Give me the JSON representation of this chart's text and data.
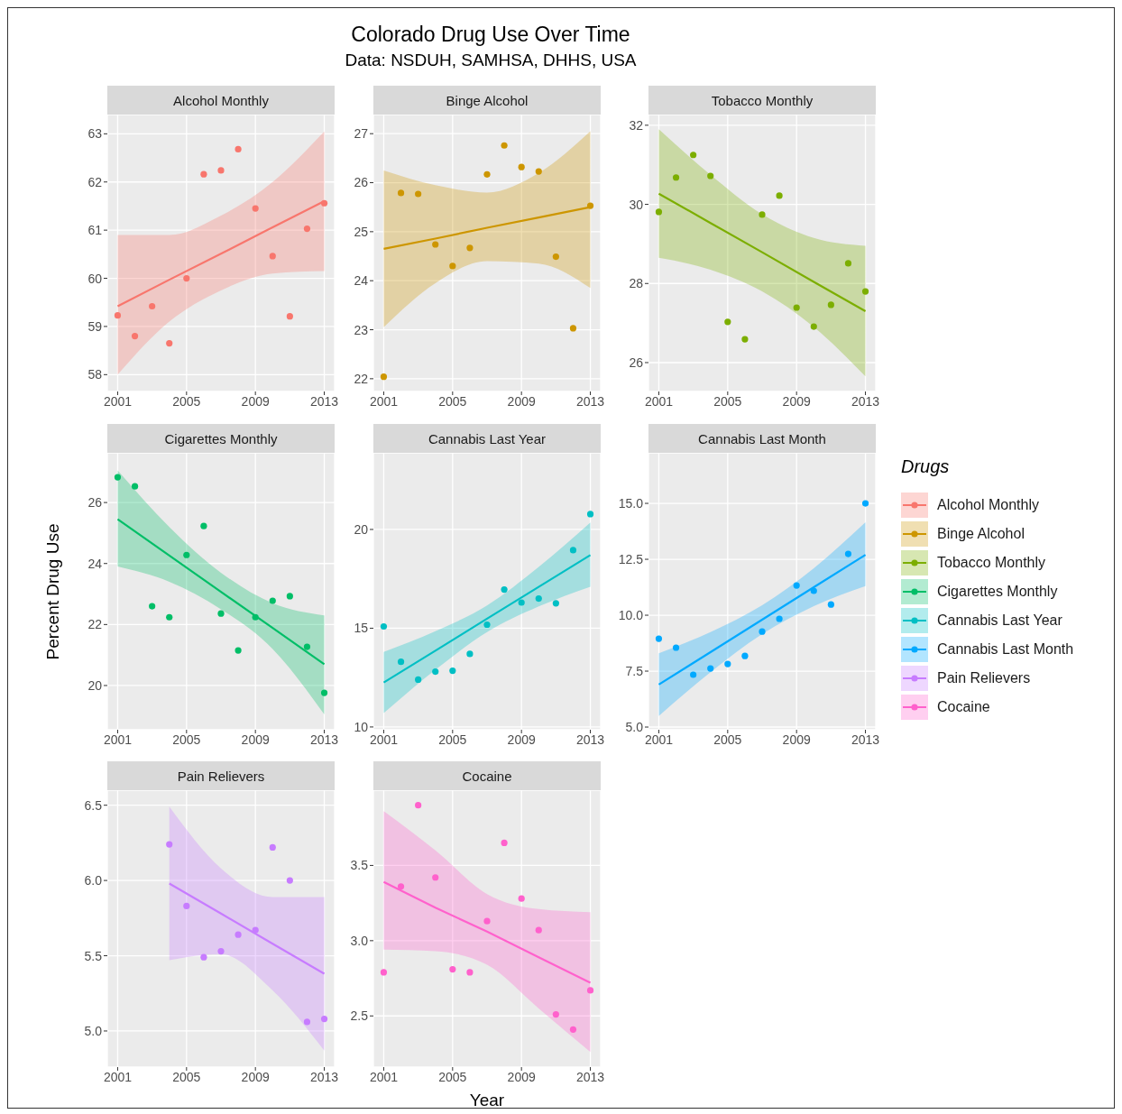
{
  "chart_data": [
    {
      "type": "other",
      "title": "Colorado Drug Use Over Time",
      "subtitle": "Data: NSDUH, SAMHSA, DHHS, USA"
    },
    {
      "type": "scatter",
      "title": "Alcohol Monthly",
      "legend": "right",
      "legend_title": "Drugs",
      "grid": true,
      "xlim": [
        2000.4,
        2013.6
      ],
      "xticks": [
        2001,
        2005,
        2009,
        2013
      ],
      "ylim": [
        57.65,
        63.4
      ],
      "yticks": [
        58,
        59,
        60,
        61,
        62,
        63
      ],
      "series": [
        {
          "name": "Alcohol Monthly",
          "type": "scatter",
          "marker": "circle",
          "color": "#f8766d",
          "x": [
            2001,
            2002,
            2003,
            2004,
            2005,
            2006,
            2007,
            2008,
            2009,
            2010,
            2011,
            2012,
            2013
          ],
          "values": [
            59.23,
            58.8,
            59.42,
            58.65,
            60.0,
            62.16,
            62.24,
            62.68,
            61.45,
            60.46,
            59.21,
            61.03,
            61.56
          ]
        },
        {
          "type": "line",
          "marker": "none",
          "color": "#f8766d",
          "x": [
            2001,
            2004,
            2007,
            2010,
            2013
          ],
          "values": [
            59.42,
            59.97,
            60.51,
            61.06,
            61.6
          ],
          "lower": [
            58.0,
            59.1,
            59.75,
            60.1,
            60.15
          ],
          "upper": [
            60.9,
            60.9,
            61.3,
            62.0,
            63.05
          ]
        }
      ]
    },
    {
      "type": "scatter",
      "title": "Binge Alcohol",
      "legend": "right",
      "grid": true,
      "xlim": [
        2000.4,
        2013.6
      ],
      "xticks": [
        2001,
        2005,
        2009,
        2013
      ],
      "ylim": [
        21.74,
        27.39
      ],
      "yticks": [
        22,
        23,
        24,
        25,
        26,
        27
      ],
      "series": [
        {
          "name": "Binge Alcohol",
          "type": "scatter",
          "marker": "circle",
          "color": "#cd9600",
          "x": [
            2001,
            2002,
            2003,
            2004,
            2005,
            2006,
            2007,
            2008,
            2009,
            2010,
            2011,
            2012,
            2013
          ],
          "values": [
            22.04,
            25.79,
            25.77,
            24.74,
            24.3,
            24.67,
            26.17,
            26.76,
            26.32,
            26.23,
            24.49,
            23.03,
            25.53
          ]
        },
        {
          "type": "line",
          "marker": "none",
          "color": "#cd9600",
          "x": [
            2001,
            2004,
            2007,
            2010,
            2013
          ],
          "values": [
            24.65,
            24.86,
            25.08,
            25.29,
            25.5
          ],
          "lower": [
            23.05,
            23.95,
            24.4,
            24.35,
            23.85
          ],
          "upper": [
            26.25,
            25.95,
            25.8,
            26.2,
            27.05
          ]
        }
      ]
    },
    {
      "type": "scatter",
      "title": "Tobacco Monthly",
      "legend": "right",
      "grid": true,
      "xlim": [
        2000.4,
        2013.6
      ],
      "xticks": [
        2001,
        2005,
        2009,
        2013
      ],
      "ylim": [
        25.27,
        32.27
      ],
      "yticks": [
        26,
        28,
        30,
        32
      ],
      "series": [
        {
          "name": "Tobacco Monthly",
          "type": "scatter",
          "marker": "circle",
          "color": "#7cae00",
          "x": [
            2001,
            2002,
            2003,
            2004,
            2005,
            2006,
            2007,
            2008,
            2009,
            2010,
            2011,
            2012,
            2013
          ],
          "values": [
            29.81,
            30.68,
            31.25,
            30.72,
            27.03,
            26.59,
            29.74,
            30.22,
            27.39,
            26.91,
            27.46,
            28.51,
            27.8
          ]
        },
        {
          "type": "line",
          "marker": "none",
          "color": "#7cae00",
          "x": [
            2001,
            2004,
            2007,
            2010,
            2013
          ],
          "values": [
            30.27,
            29.53,
            28.79,
            28.04,
            27.3
          ],
          "lower": [
            28.65,
            28.35,
            27.8,
            26.9,
            25.65
          ],
          "upper": [
            31.9,
            30.75,
            29.75,
            29.15,
            28.95
          ]
        }
      ]
    },
    {
      "type": "scatter",
      "title": "Cigarettes Monthly",
      "ylabel": "Percent Drug Use",
      "legend": "right",
      "grid": true,
      "xlim": [
        2000.4,
        2013.6
      ],
      "xticks": [
        2001,
        2005,
        2009,
        2013
      ],
      "ylim": [
        18.55,
        27.63
      ],
      "yticks": [
        20,
        22,
        24,
        26
      ],
      "series": [
        {
          "name": "Cigarettes Monthly",
          "type": "scatter",
          "marker": "circle",
          "color": "#00be67",
          "x": [
            2001,
            2002,
            2003,
            2004,
            2005,
            2006,
            2007,
            2008,
            2009,
            2010,
            2011,
            2012,
            2013
          ],
          "values": [
            26.83,
            26.53,
            22.6,
            22.24,
            24.28,
            25.23,
            22.36,
            21.15,
            22.24,
            22.78,
            22.93,
            21.27,
            19.76
          ]
        },
        {
          "type": "line",
          "marker": "none",
          "color": "#00be67",
          "x": [
            2001,
            2004,
            2007,
            2010,
            2013
          ],
          "values": [
            25.45,
            24.26,
            23.07,
            21.89,
            20.7
          ],
          "lower": [
            23.9,
            23.4,
            22.5,
            21.2,
            19.05
          ],
          "upper": [
            27.05,
            25.2,
            23.7,
            22.7,
            22.3
          ]
        }
      ]
    },
    {
      "type": "scatter",
      "title": "Cannabis Last Year",
      "legend": "right",
      "grid": true,
      "xlim": [
        2000.4,
        2013.6
      ],
      "xticks": [
        2001,
        2005,
        2009,
        2013
      ],
      "ylim": [
        9.86,
        23.88
      ],
      "yticks": [
        10,
        15,
        20
      ],
      "series": [
        {
          "name": "Cannabis Last Year",
          "type": "scatter",
          "marker": "circle",
          "color": "#00bfc4",
          "x": [
            2001,
            2002,
            2003,
            2004,
            2005,
            2006,
            2007,
            2008,
            2009,
            2010,
            2011,
            2012,
            2013
          ],
          "values": [
            15.09,
            13.3,
            12.4,
            12.8,
            12.85,
            13.7,
            15.18,
            16.96,
            16.3,
            16.5,
            16.26,
            18.95,
            20.78
          ]
        },
        {
          "type": "line",
          "marker": "none",
          "color": "#00bfc4",
          "x": [
            2001,
            2004,
            2007,
            2010,
            2013
          ],
          "values": [
            12.25,
            13.86,
            15.48,
            17.09,
            18.7
          ],
          "lower": [
            10.7,
            12.9,
            14.8,
            16.1,
            17.1
          ],
          "upper": [
            13.8,
            14.85,
            16.15,
            18.1,
            20.35
          ]
        }
      ]
    },
    {
      "type": "scatter",
      "title": "Cannabis Last Month",
      "legend": "right",
      "grid": true,
      "xlim": [
        2000.4,
        2013.6
      ],
      "xticks": [
        2001,
        2005,
        2009,
        2013
      ],
      "ylim": [
        4.88,
        17.26
      ],
      "yticks": [
        {
          "value": 5,
          "label": "5.0"
        },
        {
          "value": 7.5,
          "label": "7.5"
        },
        {
          "value": 10,
          "label": "10.0"
        },
        {
          "value": 12.5,
          "label": "12.5"
        },
        {
          "value": 15,
          "label": "15.0"
        }
      ],
      "series": [
        {
          "name": "Cannabis Last Month",
          "type": "scatter",
          "marker": "circle",
          "color": "#00a9ff",
          "x": [
            2001,
            2002,
            2003,
            2004,
            2005,
            2006,
            2007,
            2008,
            2009,
            2010,
            2011,
            2012,
            2013
          ],
          "values": [
            8.95,
            8.55,
            7.34,
            7.62,
            7.82,
            8.18,
            9.27,
            9.84,
            11.33,
            11.09,
            10.48,
            12.74,
            15.0
          ]
        },
        {
          "type": "line",
          "marker": "none",
          "color": "#00a9ff",
          "x": [
            2001,
            2004,
            2007,
            2010,
            2013
          ],
          "values": [
            6.9,
            8.35,
            9.8,
            11.25,
            12.7
          ],
          "lower": [
            5.5,
            7.45,
            9.15,
            10.4,
            11.3
          ],
          "upper": [
            8.3,
            9.25,
            10.45,
            12.1,
            14.15
          ]
        }
      ]
    },
    {
      "type": "scatter",
      "title": "Pain Relievers",
      "legend": "right",
      "grid": true,
      "xlim": [
        2000.4,
        2013.6
      ],
      "xticks": [
        2001,
        2005,
        2009,
        2013
      ],
      "ylim": [
        4.76,
        6.6
      ],
      "yticks": [
        {
          "value": 5,
          "label": "5.0"
        },
        {
          "value": 5.5,
          "label": "5.5"
        },
        {
          "value": 6,
          "label": "6.0"
        },
        {
          "value": 6.5,
          "label": "6.5"
        }
      ],
      "series": [
        {
          "name": "Pain Relievers",
          "type": "scatter",
          "marker": "circle",
          "color": "#c77cff",
          "x": [
            2004,
            2005,
            2006,
            2007,
            2008,
            2009,
            2010,
            2011,
            2012,
            2013
          ],
          "values": [
            6.24,
            5.83,
            5.49,
            5.53,
            5.64,
            5.67,
            6.22,
            6.0,
            5.06,
            5.08
          ]
        },
        {
          "type": "line",
          "marker": "none",
          "color": "#c77cff",
          "x": [
            2004,
            2007,
            2010,
            2013
          ],
          "values": [
            5.98,
            5.78,
            5.58,
            5.38
          ],
          "lower": [
            5.47,
            5.51,
            5.27,
            4.87
          ],
          "upper": [
            6.49,
            6.08,
            5.89,
            5.89
          ]
        }
      ]
    },
    {
      "type": "scatter",
      "title": "Cocaine",
      "xlabel": "Year",
      "legend": "right",
      "grid": true,
      "xlim": [
        2000.4,
        2013.6
      ],
      "xticks": [
        2001,
        2005,
        2009,
        2013
      ],
      "ylim": [
        2.16,
        4.0
      ],
      "yticks": [
        {
          "value": 2.5,
          "label": "2.5"
        },
        {
          "value": 3,
          "label": "3.0"
        },
        {
          "value": 3.5,
          "label": "3.5"
        }
      ],
      "series": [
        {
          "name": "Cocaine",
          "type": "scatter",
          "marker": "circle",
          "color": "#ff61cc",
          "x": [
            2001,
            2002,
            2003,
            2004,
            2005,
            2006,
            2007,
            2008,
            2009,
            2010,
            2011,
            2012,
            2013
          ],
          "values": [
            2.79,
            3.36,
            3.9,
            3.42,
            2.81,
            2.79,
            3.13,
            3.65,
            3.28,
            3.07,
            2.51,
            2.41,
            2.67
          ]
        },
        {
          "type": "line",
          "marker": "none",
          "color": "#ff61cc",
          "x": [
            2001,
            2004,
            2007,
            2010,
            2013
          ],
          "values": [
            3.39,
            3.22,
            3.06,
            2.89,
            2.72
          ],
          "lower": [
            2.94,
            2.93,
            2.84,
            2.55,
            2.26
          ],
          "upper": [
            3.86,
            3.6,
            3.31,
            3.21,
            3.19
          ]
        }
      ]
    }
  ]
}
